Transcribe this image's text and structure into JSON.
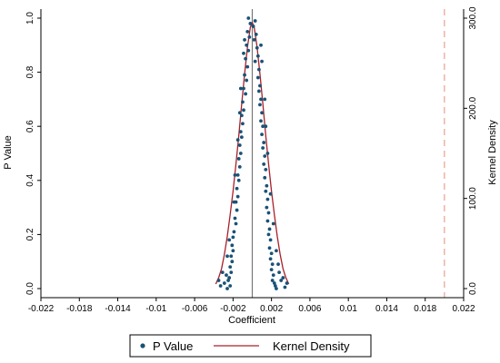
{
  "chart_data": {
    "type": "scatter",
    "title": "",
    "xlabel": "Coefficient",
    "ylabel_left": "P Value",
    "ylabel_right": "Kernel Density",
    "xlim": [
      -0.022,
      0.022
    ],
    "ylim_left": [
      0,
      1
    ],
    "ylim_right": [
      0,
      300
    ],
    "x_ticks": [
      -0.022,
      -0.018,
      -0.014,
      -0.01,
      -0.006,
      -0.002,
      0.002,
      0.006,
      0.01,
      0.014,
      0.018,
      0.022
    ],
    "x_tick_labels": [
      "-0.022",
      "-0.018",
      "-0.014",
      "-0.01",
      "-0.006",
      "-0.002",
      "0.002",
      "0.006",
      "0.01",
      "0.014",
      "0.018",
      "0.022"
    ],
    "y_left_ticks": [
      0,
      0.2,
      0.4,
      0.6,
      0.8,
      1
    ],
    "y_left_tick_labels": [
      "0.0",
      "0.2",
      "0.4",
      "0.6",
      "0.8",
      "1.0"
    ],
    "y_right_ticks": [
      0,
      100,
      200,
      300
    ],
    "y_right_tick_labels": [
      "0.0",
      "100.0",
      "200.0",
      "300.0"
    ],
    "reference_lines": [
      {
        "x": 0,
        "style": "solid",
        "color": "#777777"
      },
      {
        "x": 0.02,
        "style": "dashed",
        "color": "#e8a090"
      }
    ],
    "series": [
      {
        "name": "P Value",
        "kind": "scatter",
        "axis": "left",
        "color": "#1a5276",
        "points": [
          [
            -0.0004,
            1.0
          ],
          [
            0.0003,
            0.99
          ],
          [
            -0.0002,
            0.98
          ],
          [
            0.0001,
            0.97
          ],
          [
            -0.0005,
            0.95
          ],
          [
            0.0004,
            0.94
          ],
          [
            -0.0003,
            0.93
          ],
          [
            0.0002,
            0.92
          ],
          [
            -0.0006,
            0.9
          ],
          [
            0.0005,
            0.89
          ],
          [
            -0.0004,
            0.88
          ],
          [
            0.0006,
            0.86
          ],
          [
            -0.0007,
            0.85
          ],
          [
            0.0003,
            0.84
          ],
          [
            -0.0005,
            0.82
          ],
          [
            0.0007,
            0.81
          ],
          [
            -0.0008,
            0.79
          ],
          [
            0.0006,
            0.78
          ],
          [
            -0.0006,
            0.77
          ],
          [
            0.0008,
            0.75
          ],
          [
            -0.0009,
            0.74
          ],
          [
            0.0007,
            0.73
          ],
          [
            -0.0007,
            0.72
          ],
          [
            0.0009,
            0.7
          ],
          [
            -0.001,
            0.69
          ],
          [
            0.0008,
            0.68
          ],
          [
            -0.0009,
            0.66
          ],
          [
            0.001,
            0.65
          ],
          [
            -0.0011,
            0.64
          ],
          [
            0.0009,
            0.62
          ],
          [
            -0.001,
            0.61
          ],
          [
            0.0011,
            0.6
          ],
          [
            -0.0012,
            0.58
          ],
          [
            0.001,
            0.57
          ],
          [
            -0.0011,
            0.56
          ],
          [
            0.0012,
            0.54
          ],
          [
            -0.0013,
            0.53
          ],
          [
            0.0011,
            0.52
          ],
          [
            -0.0012,
            0.5
          ],
          [
            0.0013,
            0.49
          ],
          [
            -0.0014,
            0.48
          ],
          [
            0.0012,
            0.46
          ],
          [
            -0.0013,
            0.45
          ],
          [
            0.0014,
            0.44
          ],
          [
            -0.0015,
            0.42
          ],
          [
            0.0013,
            0.41
          ],
          [
            -0.0014,
            0.4
          ],
          [
            0.0015,
            0.38
          ],
          [
            -0.0016,
            0.37
          ],
          [
            0.0014,
            0.36
          ],
          [
            -0.0015,
            0.34
          ],
          [
            0.0016,
            0.33
          ],
          [
            -0.0017,
            0.32
          ],
          [
            0.0015,
            0.3
          ],
          [
            -0.0016,
            0.29
          ],
          [
            0.0017,
            0.28
          ],
          [
            -0.0018,
            0.26
          ],
          [
            0.0016,
            0.25
          ],
          [
            -0.0017,
            0.24
          ],
          [
            0.0018,
            0.22
          ],
          [
            -0.0019,
            0.21
          ],
          [
            0.0017,
            0.2
          ],
          [
            -0.002,
            0.19
          ],
          [
            0.0019,
            0.18
          ],
          [
            -0.0021,
            0.16
          ],
          [
            0.0018,
            0.15
          ],
          [
            -0.002,
            0.14
          ],
          [
            0.002,
            0.13
          ],
          [
            -0.0022,
            0.12
          ],
          [
            0.0019,
            0.11
          ],
          [
            -0.0021,
            0.1
          ],
          [
            0.0021,
            0.09
          ],
          [
            -0.0023,
            0.08
          ],
          [
            0.002,
            0.07
          ],
          [
            -0.0022,
            0.06
          ],
          [
            0.0022,
            0.05
          ],
          [
            -0.0024,
            0.04
          ],
          [
            0.0021,
            0.03
          ],
          [
            -0.0025,
            0.03
          ],
          [
            0.0023,
            0.02
          ],
          [
            -0.0023,
            0.01
          ],
          [
            0.0024,
            0.01
          ],
          [
            -0.0026,
            0.0
          ],
          [
            0.0025,
            0.0
          ],
          [
            -0.0035,
            0.03
          ],
          [
            -0.0033,
            0.01
          ],
          [
            0.0036,
            0.02
          ],
          [
            0.0034,
            0.005
          ],
          [
            -0.0029,
            0.02
          ],
          [
            0.003,
            0.03
          ],
          [
            -0.0027,
            0.05
          ],
          [
            0.0028,
            0.06
          ],
          [
            -0.0031,
            0.06
          ],
          [
            0.0032,
            0.04
          ],
          [
            -0.0019,
            0.32
          ],
          [
            0.0022,
            0.24
          ],
          [
            -0.0012,
            0.74
          ],
          [
            0.0013,
            0.7
          ],
          [
            -0.0009,
            0.87
          ],
          [
            0.001,
            0.84
          ],
          [
            -0.0015,
            0.55
          ],
          [
            0.0016,
            0.5
          ],
          [
            -0.0018,
            0.42
          ],
          [
            0.0019,
            0.35
          ],
          [
            -0.0024,
            0.18
          ],
          [
            0.0025,
            0.14
          ],
          [
            -0.0026,
            0.12
          ],
          [
            0.0027,
            0.09
          ],
          [
            -0.0008,
            0.92
          ],
          [
            0.0009,
            0.9
          ],
          [
            -0.0013,
            0.65
          ],
          [
            0.0014,
            0.6
          ]
        ]
      },
      {
        "name": "Kernel Density",
        "kind": "line",
        "axis": "right",
        "color": "#a8202a",
        "points": [
          [
            -0.0038,
            5
          ],
          [
            -0.0035,
            12
          ],
          [
            -0.0032,
            22
          ],
          [
            -0.0029,
            38
          ],
          [
            -0.0026,
            58
          ],
          [
            -0.0023,
            82
          ],
          [
            -0.002,
            108
          ],
          [
            -0.0017,
            138
          ],
          [
            -0.0014,
            170
          ],
          [
            -0.0011,
            205
          ],
          [
            -0.0008,
            238
          ],
          [
            -0.0005,
            268
          ],
          [
            -0.0002,
            290
          ],
          [
            0.0,
            295
          ],
          [
            0.0002,
            290
          ],
          [
            0.0005,
            268
          ],
          [
            0.0008,
            238
          ],
          [
            0.0011,
            205
          ],
          [
            0.0014,
            170
          ],
          [
            0.0017,
            138
          ],
          [
            0.002,
            108
          ],
          [
            0.0023,
            82
          ],
          [
            0.0026,
            58
          ],
          [
            0.0029,
            38
          ],
          [
            0.0032,
            22
          ],
          [
            0.0035,
            12
          ],
          [
            0.0038,
            5
          ]
        ]
      }
    ],
    "legend": {
      "placement": "bottom",
      "items": [
        "P Value",
        "Kernel Density"
      ]
    }
  }
}
